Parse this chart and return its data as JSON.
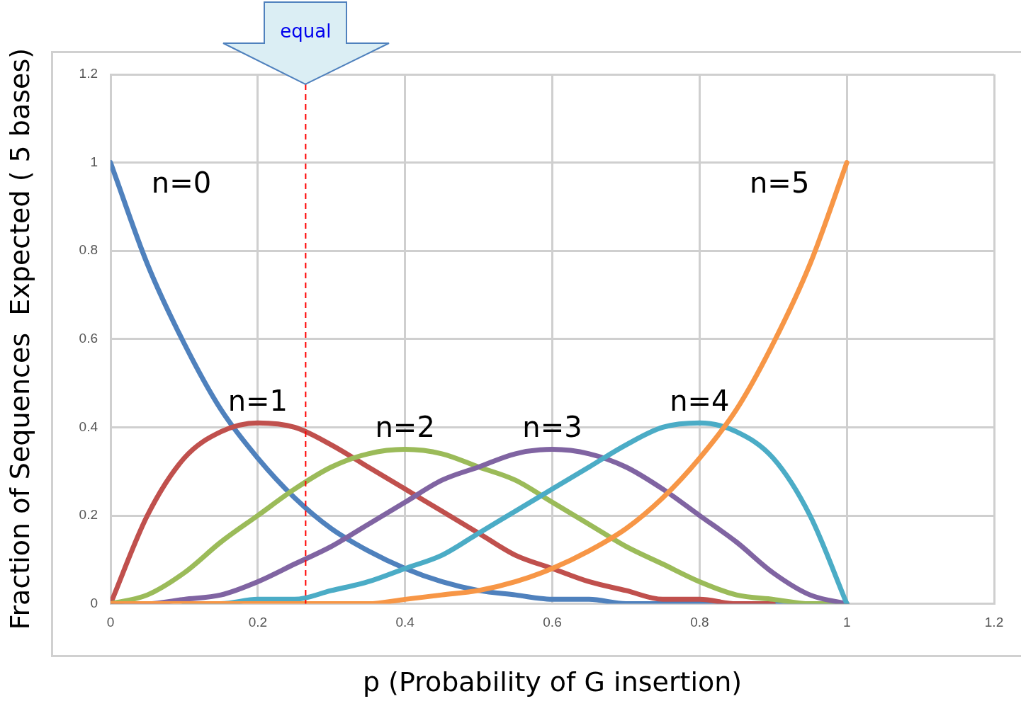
{
  "chart_data": {
    "type": "line",
    "xlabel": "p (Probability of G insertion)",
    "ylabel": "Fraction of Sequences  Expected ( 5 bases)",
    "x": [
      0,
      0.05,
      0.1,
      0.15,
      0.2,
      0.25,
      0.3,
      0.35,
      0.4,
      0.45,
      0.5,
      0.55,
      0.6,
      0.65,
      0.7,
      0.75,
      0.8,
      0.85,
      0.9,
      0.95,
      1
    ],
    "series": [
      {
        "name": "n=0",
        "color": "#4f81bd",
        "values": [
          1,
          0.77,
          0.59,
          0.44,
          0.33,
          0.24,
          0.17,
          0.12,
          0.08,
          0.05,
          0.03,
          0.02,
          0.01,
          0.01,
          0,
          0,
          0,
          0,
          0,
          0,
          0
        ]
      },
      {
        "name": "n=1",
        "color": "#c0504d",
        "values": [
          0,
          0.2,
          0.33,
          0.39,
          0.41,
          0.4,
          0.36,
          0.31,
          0.26,
          0.21,
          0.16,
          0.11,
          0.08,
          0.05,
          0.03,
          0.01,
          0.01,
          0,
          0,
          null,
          null
        ]
      },
      {
        "name": "n=2",
        "color": "#9bbb59",
        "values": [
          0,
          0.02,
          0.07,
          0.14,
          0.2,
          0.26,
          0.31,
          0.34,
          0.35,
          0.34,
          0.31,
          0.28,
          0.23,
          0.18,
          0.13,
          0.09,
          0.05,
          0.02,
          0.01,
          0,
          0
        ]
      },
      {
        "name": "n=3",
        "color": "#8064a2",
        "values": [
          0,
          0,
          0.01,
          0.02,
          0.05,
          0.09,
          0.13,
          0.18,
          0.23,
          0.28,
          0.31,
          0.34,
          0.35,
          0.34,
          0.31,
          0.26,
          0.2,
          0.14,
          0.07,
          0.02,
          0
        ]
      },
      {
        "name": "n=4",
        "color": "#4bacc6",
        "values": [
          null,
          null,
          0,
          0,
          0.01,
          0.01,
          0.03,
          0.05,
          0.08,
          0.11,
          0.16,
          0.21,
          0.26,
          0.31,
          0.36,
          0.4,
          0.41,
          0.39,
          0.33,
          0.2,
          0
        ]
      },
      {
        "name": "n=5",
        "color": "#f79646",
        "values": [
          0,
          0,
          0,
          0,
          0,
          0,
          0,
          0,
          0.01,
          0.02,
          0.03,
          0.05,
          0.08,
          0.12,
          0.17,
          0.24,
          0.33,
          0.44,
          0.59,
          0.77,
          1
        ]
      }
    ],
    "xlim": [
      0,
      1.2
    ],
    "xticks": [
      0,
      0.2,
      0.4,
      0.6,
      0.8,
      1,
      1.2
    ],
    "ylim": [
      0,
      1.2
    ],
    "yticks": [
      0,
      0.2,
      0.4,
      0.6,
      0.8,
      1,
      1.2
    ],
    "grid": true,
    "legend": false,
    "marker": "none",
    "line_style": "solid",
    "ref_lines": [
      {
        "axis": "x",
        "value": 0.265,
        "label": "equal",
        "color": "#ff0000",
        "line_style": "dashed"
      }
    ]
  }
}
